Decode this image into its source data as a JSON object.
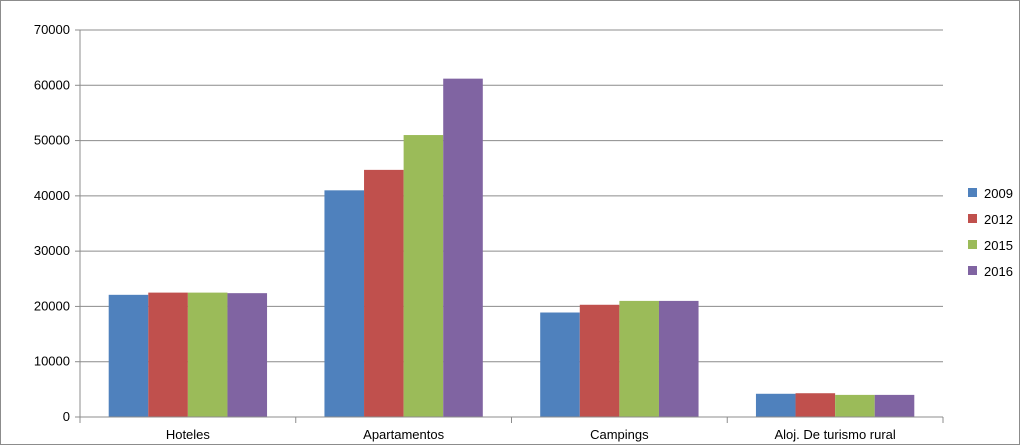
{
  "chart_data": {
    "type": "bar",
    "title": "",
    "xlabel": "",
    "ylabel": "",
    "categories": [
      "Hoteles",
      "Apartamentos",
      "Campings",
      "Aloj. De turismo rural"
    ],
    "series": [
      {
        "name": "2009",
        "color": "#4f81bd",
        "values": [
          22100,
          41000,
          18900,
          4200
        ]
      },
      {
        "name": "2012",
        "color": "#c0504d",
        "values": [
          22500,
          44700,
          20300,
          4300
        ]
      },
      {
        "name": "2015",
        "color": "#9bbb59",
        "values": [
          22500,
          51000,
          21000,
          4000
        ]
      },
      {
        "name": "2016",
        "color": "#8064a2",
        "values": [
          22400,
          61200,
          21000,
          4000
        ]
      }
    ],
    "ylim": [
      0,
      70000
    ],
    "yticks": [
      "0",
      "10000",
      "20000",
      "30000",
      "40000",
      "50000",
      "60000",
      "70000"
    ],
    "grid": true,
    "legend": "right"
  }
}
